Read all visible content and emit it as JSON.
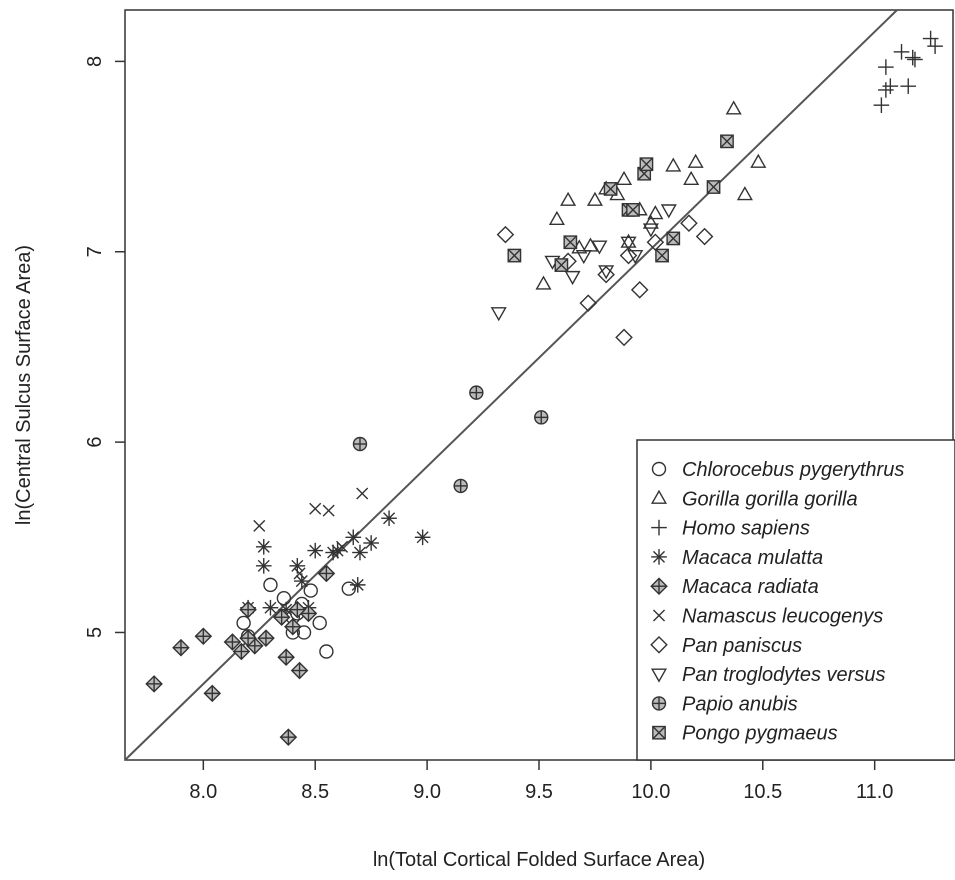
{
  "chart_data": {
    "type": "scatter",
    "title": "",
    "xlabel": "ln(Total Cortical Folded Surface Area)",
    "ylabel": "ln(Central Sulcus Surface Area)",
    "xlim": [
      7.65,
      11.35
    ],
    "ylim": [
      4.33,
      8.27
    ],
    "x_ticks": [
      {
        "value": 8.0,
        "label": "8.0"
      },
      {
        "value": 8.5,
        "label": "8.5"
      },
      {
        "value": 9.0,
        "label": "9.0"
      },
      {
        "value": 9.5,
        "label": "9.5"
      },
      {
        "value": 10.0,
        "label": "10.0"
      },
      {
        "value": 10.5,
        "label": "10.5"
      },
      {
        "value": 11.0,
        "label": "11.0"
      }
    ],
    "y_ticks": [
      {
        "value": 5,
        "label": "5"
      },
      {
        "value": 6,
        "label": "6"
      },
      {
        "value": 7,
        "label": "7"
      },
      {
        "value": 8,
        "label": "8"
      }
    ],
    "grid": false,
    "legend_position": "bottom-right",
    "regression_line": {
      "x": [
        7.65,
        11.1
      ],
      "y": [
        4.33,
        8.27
      ]
    },
    "series": [
      {
        "name": "Chlorocebus pygerythrus",
        "marker": "circle",
        "x": [
          8.18,
          8.3,
          8.36,
          8.4,
          8.42,
          8.45,
          8.48,
          8.52,
          8.55,
          8.65,
          8.2,
          8.44,
          8.4
        ],
        "y": [
          5.05,
          5.25,
          5.18,
          5.0,
          5.1,
          5.0,
          5.22,
          5.05,
          4.9,
          5.23,
          4.98,
          5.15,
          5.08
        ]
      },
      {
        "name": "Gorilla gorilla gorilla",
        "marker": "triangle",
        "x": [
          9.52,
          9.58,
          9.63,
          9.73,
          9.75,
          9.8,
          9.88,
          9.9,
          9.95,
          10.02,
          10.1,
          10.18,
          10.2,
          10.37,
          10.42,
          10.48,
          9.68,
          9.85,
          10.0
        ],
        "y": [
          6.83,
          7.17,
          7.27,
          7.03,
          7.27,
          7.33,
          7.38,
          7.05,
          7.22,
          7.2,
          7.45,
          7.38,
          7.47,
          7.75,
          7.3,
          7.47,
          7.02,
          7.3,
          7.15
        ]
      },
      {
        "name": "Homo sapiens",
        "marker": "plus",
        "x": [
          11.03,
          11.05,
          11.07,
          11.12,
          11.15,
          11.17,
          11.25,
          11.27,
          11.05,
          11.18
        ],
        "y": [
          7.77,
          7.97,
          7.87,
          8.05,
          7.87,
          8.02,
          8.12,
          8.08,
          7.85,
          8.01
        ]
      },
      {
        "name": "Macaca mulatta",
        "marker": "star",
        "x": [
          8.27,
          8.27,
          8.37,
          8.42,
          8.47,
          8.5,
          8.58,
          8.6,
          8.67,
          8.7,
          8.75,
          8.83,
          8.98,
          8.2,
          8.3,
          8.44,
          8.69
        ],
        "y": [
          5.45,
          5.35,
          5.12,
          5.35,
          5.13,
          5.43,
          5.42,
          5.43,
          5.5,
          5.42,
          5.47,
          5.6,
          5.5,
          5.13,
          5.13,
          5.27,
          5.25
        ]
      },
      {
        "name": "Macaca radiata",
        "marker": "diamond-plus",
        "x": [
          7.78,
          7.9,
          8.0,
          8.04,
          8.13,
          8.17,
          8.2,
          8.23,
          8.28,
          8.35,
          8.37,
          8.38,
          8.4,
          8.43,
          8.47,
          8.55,
          8.2,
          8.42
        ],
        "y": [
          4.73,
          4.92,
          4.98,
          4.68,
          4.95,
          4.9,
          5.12,
          4.93,
          4.97,
          5.08,
          4.87,
          4.45,
          5.03,
          4.8,
          5.1,
          5.31,
          4.97,
          5.12
        ]
      },
      {
        "name": "Namascus leucogenys",
        "marker": "x",
        "x": [
          8.25,
          8.43,
          8.5,
          8.56,
          8.71,
          8.62
        ],
        "y": [
          5.56,
          5.31,
          5.65,
          5.64,
          5.73,
          5.45
        ]
      },
      {
        "name": "Pan paniscus",
        "marker": "diamond",
        "x": [
          9.35,
          9.72,
          9.8,
          9.88,
          9.95,
          10.02,
          10.17,
          10.24,
          9.9,
          9.63
        ],
        "y": [
          7.09,
          6.73,
          6.88,
          6.55,
          6.8,
          7.05,
          7.15,
          7.08,
          6.98,
          6.95
        ]
      },
      {
        "name": "Pan troglodytes versus",
        "marker": "triangle-down",
        "x": [
          9.32,
          9.56,
          9.7,
          9.77,
          9.8,
          9.9,
          10.0,
          10.08,
          9.93,
          9.65
        ],
        "y": [
          6.68,
          6.95,
          6.98,
          7.03,
          6.9,
          7.05,
          7.12,
          7.22,
          6.98,
          6.87
        ]
      },
      {
        "name": "Papio anubis",
        "marker": "circle-plus",
        "x": [
          8.7,
          9.15,
          9.22,
          9.51
        ],
        "y": [
          5.99,
          5.77,
          6.26,
          6.13
        ]
      },
      {
        "name": "Pongo pygmaeus",
        "marker": "square-x",
        "x": [
          9.39,
          9.6,
          9.64,
          9.82,
          9.9,
          9.97,
          9.98,
          10.05,
          10.1,
          10.28,
          10.34,
          9.92
        ],
        "y": [
          6.98,
          6.93,
          7.05,
          7.33,
          7.22,
          7.41,
          7.46,
          6.98,
          7.07,
          7.34,
          7.58,
          7.22
        ]
      }
    ]
  }
}
